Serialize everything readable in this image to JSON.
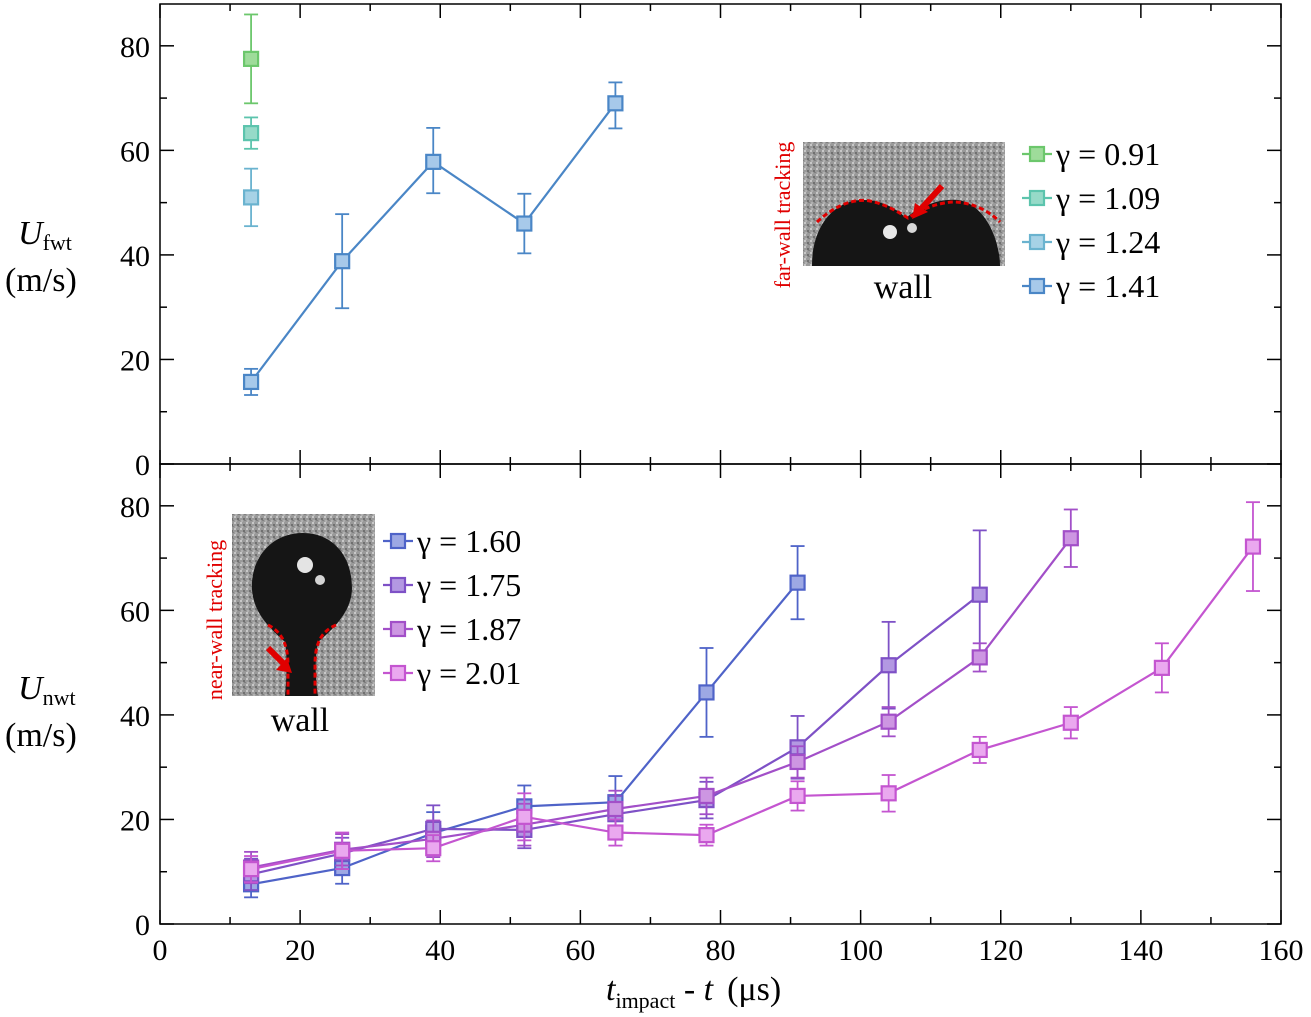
{
  "chart_data": [
    {
      "type": "line",
      "panel": "top",
      "ylabel": "U_fwt (m/s)",
      "ylabel_main": "U",
      "ylabel_sub": "fwt",
      "ylabel_unit": "(m/s)",
      "xlim": [
        0,
        160
      ],
      "ylim": [
        0,
        88
      ],
      "yticks": [
        "0",
        "20",
        "40",
        "60",
        "80"
      ],
      "ytick_values": [
        0,
        20,
        40,
        60,
        80
      ],
      "legend_position": "right",
      "inset": {
        "side_label": "far-wall tracking",
        "caption": "wall"
      },
      "series": [
        {
          "name": "γ = 0.91",
          "color": "#6cc76c",
          "fill": "#9edc9a",
          "points": [
            {
              "x": 13,
              "y": 77.5,
              "err_lo": 8.5,
              "err_hi": 8.5
            }
          ]
        },
        {
          "name": "γ = 1.09",
          "color": "#5cc4ad",
          "fill": "#96dac8",
          "points": [
            {
              "x": 13,
              "y": 63.3,
              "err_lo": 3,
              "err_hi": 3
            }
          ]
        },
        {
          "name": "γ = 1.24",
          "color": "#6ab3cf",
          "fill": "#a6d2e6",
          "points": [
            {
              "x": 13,
              "y": 51,
              "err_lo": 5.5,
              "err_hi": 5.5
            }
          ]
        },
        {
          "name": "γ = 1.41",
          "color": "#4a86c6",
          "fill": "#a7c9ea",
          "points": [
            {
              "x": 13,
              "y": 15.7,
              "err_lo": 2.5,
              "err_hi": 2.5
            },
            {
              "x": 26,
              "y": 38.8,
              "err_lo": 9,
              "err_hi": 9
            },
            {
              "x": 39,
              "y": 57.8,
              "err_lo": 6,
              "err_hi": 6.5
            },
            {
              "x": 52,
              "y": 46,
              "err_lo": 5.7,
              "err_hi": 5.7
            },
            {
              "x": 65,
              "y": 69,
              "err_lo": 4.8,
              "err_hi": 4
            }
          ]
        }
      ]
    },
    {
      "type": "line",
      "panel": "bottom",
      "xlabel": "t_impact - t (μs)",
      "xlabel_main": "t",
      "xlabel_sub": "impact",
      "xlabel_rest": " - ",
      "xlabel_t": "t",
      "xlabel_unit": "(μs)",
      "ylabel": "U_nwt (m/s)",
      "ylabel_main": "U",
      "ylabel_sub": "nwt",
      "ylabel_unit": "(m/s)",
      "xlim": [
        0,
        160
      ],
      "ylim": [
        0,
        88
      ],
      "xticks": [
        "0",
        "20",
        "40",
        "60",
        "80",
        "100",
        "120",
        "140",
        "160"
      ],
      "xtick_values": [
        0,
        20,
        40,
        60,
        80,
        100,
        120,
        140,
        160
      ],
      "yticks": [
        "0",
        "20",
        "40",
        "60",
        "80"
      ],
      "ytick_values": [
        0,
        20,
        40,
        60,
        80
      ],
      "legend_position": "top-left",
      "inset": {
        "side_label": "near-wall tracking",
        "caption": "wall"
      },
      "series": [
        {
          "name": "γ = 1.60",
          "color": "#4f63c8",
          "fill": "#9da8e4",
          "points": [
            {
              "x": 13,
              "y": 7.6,
              "err_lo": 2.5,
              "err_hi": 2.5
            },
            {
              "x": 26,
              "y": 10.7,
              "err_lo": 3,
              "err_hi": 3
            },
            {
              "x": 39,
              "y": 17.4,
              "err_lo": 4,
              "err_hi": 4
            },
            {
              "x": 52,
              "y": 22.5,
              "err_lo": 4,
              "err_hi": 4
            },
            {
              "x": 65,
              "y": 23.3,
              "err_lo": 5,
              "err_hi": 5
            },
            {
              "x": 78,
              "y": 44.3,
              "err_lo": 8.5,
              "err_hi": 8.5
            },
            {
              "x": 91,
              "y": 65.3,
              "err_lo": 7,
              "err_hi": 7
            }
          ]
        },
        {
          "name": "γ = 1.75",
          "color": "#7e51c6",
          "fill": "#b398e2",
          "points": [
            {
              "x": 13,
              "y": 9.5,
              "err_lo": 3,
              "err_hi": 3
            },
            {
              "x": 26,
              "y": 13.5,
              "err_lo": 3,
              "err_hi": 3
            },
            {
              "x": 39,
              "y": 18.2,
              "err_lo": 4.5,
              "err_hi": 4.5
            },
            {
              "x": 52,
              "y": 18,
              "err_lo": 3.5,
              "err_hi": 3.5
            },
            {
              "x": 65,
              "y": 21,
              "err_lo": 3.5,
              "err_hi": 3.5
            },
            {
              "x": 78,
              "y": 23.7,
              "err_lo": 3.5,
              "err_hi": 3.5
            },
            {
              "x": 91,
              "y": 33.8,
              "err_lo": 6,
              "err_hi": 6
            },
            {
              "x": 104,
              "y": 49.5,
              "err_lo": 8.3,
              "err_hi": 8.3
            },
            {
              "x": 117,
              "y": 63,
              "err_lo": 12.3,
              "err_hi": 12.3
            }
          ]
        },
        {
          "name": "γ = 1.87",
          "color": "#a24fc8",
          "fill": "#cd96e2",
          "points": [
            {
              "x": 13,
              "y": 10.8,
              "err_lo": 3,
              "err_hi": 3
            },
            {
              "x": 26,
              "y": 14.2,
              "err_lo": 3,
              "err_hi": 3
            },
            {
              "x": 39,
              "y": 16.3,
              "err_lo": 3.5,
              "err_hi": 3.5
            },
            {
              "x": 52,
              "y": 19,
              "err_lo": 4,
              "err_hi": 4
            },
            {
              "x": 65,
              "y": 22,
              "err_lo": 3.5,
              "err_hi": 3.5
            },
            {
              "x": 78,
              "y": 24.5,
              "err_lo": 3.5,
              "err_hi": 3.5
            },
            {
              "x": 91,
              "y": 31,
              "err_lo": 3,
              "err_hi": 3
            },
            {
              "x": 104,
              "y": 38.7,
              "err_lo": 2.8,
              "err_hi": 2.8
            },
            {
              "x": 117,
              "y": 51,
              "err_lo": 2.7,
              "err_hi": 2.7
            },
            {
              "x": 130,
              "y": 73.8,
              "err_lo": 5.5,
              "err_hi": 5.5
            }
          ]
        },
        {
          "name": "γ = 2.01",
          "color": "#c455d0",
          "fill": "#eaa8ef",
          "points": [
            {
              "x": 13,
              "y": 10.5,
              "err_lo": 2.5,
              "err_hi": 2.5
            },
            {
              "x": 26,
              "y": 14,
              "err_lo": 3.5,
              "err_hi": 3.5
            },
            {
              "x": 39,
              "y": 14.5,
              "err_lo": 2.5,
              "err_hi": 2.5
            },
            {
              "x": 52,
              "y": 20.5,
              "err_lo": 4.5,
              "err_hi": 4.5
            },
            {
              "x": 65,
              "y": 17.5,
              "err_lo": 2.5,
              "err_hi": 2.5
            },
            {
              "x": 78,
              "y": 17,
              "err_lo": 2,
              "err_hi": 2
            },
            {
              "x": 91,
              "y": 24.5,
              "err_lo": 2.8,
              "err_hi": 2.8
            },
            {
              "x": 104,
              "y": 25,
              "err_lo": 3.5,
              "err_hi": 3.5
            },
            {
              "x": 117,
              "y": 33.3,
              "err_lo": 2.5,
              "err_hi": 2.5
            },
            {
              "x": 130,
              "y": 38.5,
              "err_lo": 3,
              "err_hi": 3
            },
            {
              "x": 143,
              "y": 49,
              "err_lo": 4.7,
              "err_hi": 4.7
            },
            {
              "x": 156,
              "y": 72.2,
              "err_lo": 8.5,
              "err_hi": 8.5
            }
          ]
        }
      ]
    }
  ]
}
